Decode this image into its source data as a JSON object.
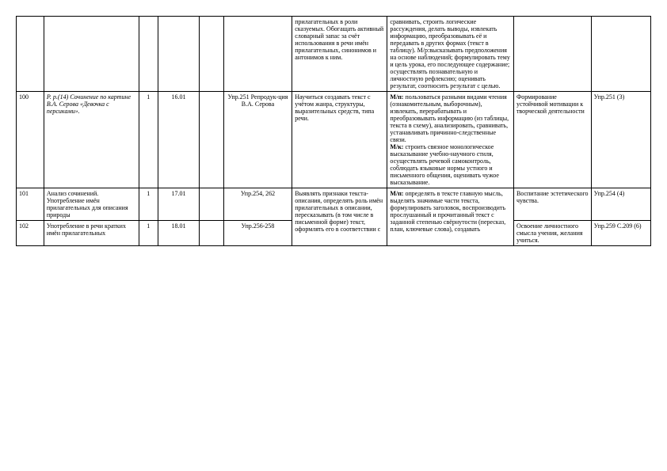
{
  "rows": [
    {
      "num": "",
      "topic": "",
      "hours": "",
      "date": "",
      "blank": "",
      "materials": "",
      "learn": "прилагательных в роли сказуемых. Обогащать активный словарный запас за счёт использования в речи имён прилагательных, синонимов и антонимов к ним.",
      "meta": "сравнивать, строить логические рассуждения, делать выводы, извлекать информацию, преобразовывать её и передавать в других формах (текст в таблицу). М/р:высказывать предположения на основе наблюдений; формулировать тему и цель урока, его последующее содержание; осуществлять познавательную и личностную рефлексию; оценивать результат, соотносить результат с целью.",
      "form": "",
      "hw": ""
    },
    {
      "num": "100",
      "topic_italic": "Р. р.(14) Сочинение по картине В.А. Серова «Девочка с персиками».",
      "hours": "1",
      "date": "16.01",
      "blank": "",
      "materials": "Упр.251 Репродук-ция В.А. Серова",
      "learn": "Научиться создавать текст с учётом жанра, структуры, выразительных средств, типа речи.",
      "meta_prefix": "М/п:",
      "meta_body1": " пользоваться  разными видами  чтения (ознакомительным, выборочным),  извлекать, перерабатывать  и  преобразовывать информацию (из таблицы, текста в схему), анализировать, сравнивать, устанавливать причинно-следственные связи.",
      "meta_prefix2": "М/к:",
      "meta_body2": " строить связное монологическое высказывание учебно-научного  стиля, осуществлять  речевой самоконтроль,  соблюдать языковые нормы устного и письменного общения, оценивать  чужое высказывание.",
      "form": "Формирование устойчивой мотивации к творческой деятельности",
      "hw": "Упр.251 (3)"
    },
    {
      "num": "101",
      "topic": "Анализ сочинений. Употребление имён прилагательных для описания природы",
      "hours": "1",
      "date": "17.01",
      "blank": "",
      "materials": "Упр.254, 262",
      "learn_merged": "Выявлять признаки текста-описания, определять роль имён прилагательных в описании, пересказывать (в том числе в письменной форме) текст, оформлять его в соответствии с",
      "meta_merged_prefix": "М/п:",
      "meta_merged_body": " определять  в  тексте главную мысль, выделять значимые части текста, формулировать заголовок, воспроизводить прослушанный  и  прочитанный текст  с  заданной степенью свёрнутости  (пересказ, план, ключевые слова), создавать",
      "form": "Воспитание эстетического чувства.",
      "hw": "Упр.254 (4)"
    },
    {
      "num": "102",
      "topic": "Употребление в речи кратких имён прилагательных",
      "hours": "1",
      "date": "18.01",
      "blank": "",
      "materials": "Упр.256-258",
      "form": "Освоение личностного смысла учения, желания учиться.",
      "hw": "Упр.259 С.209 (6)"
    }
  ]
}
